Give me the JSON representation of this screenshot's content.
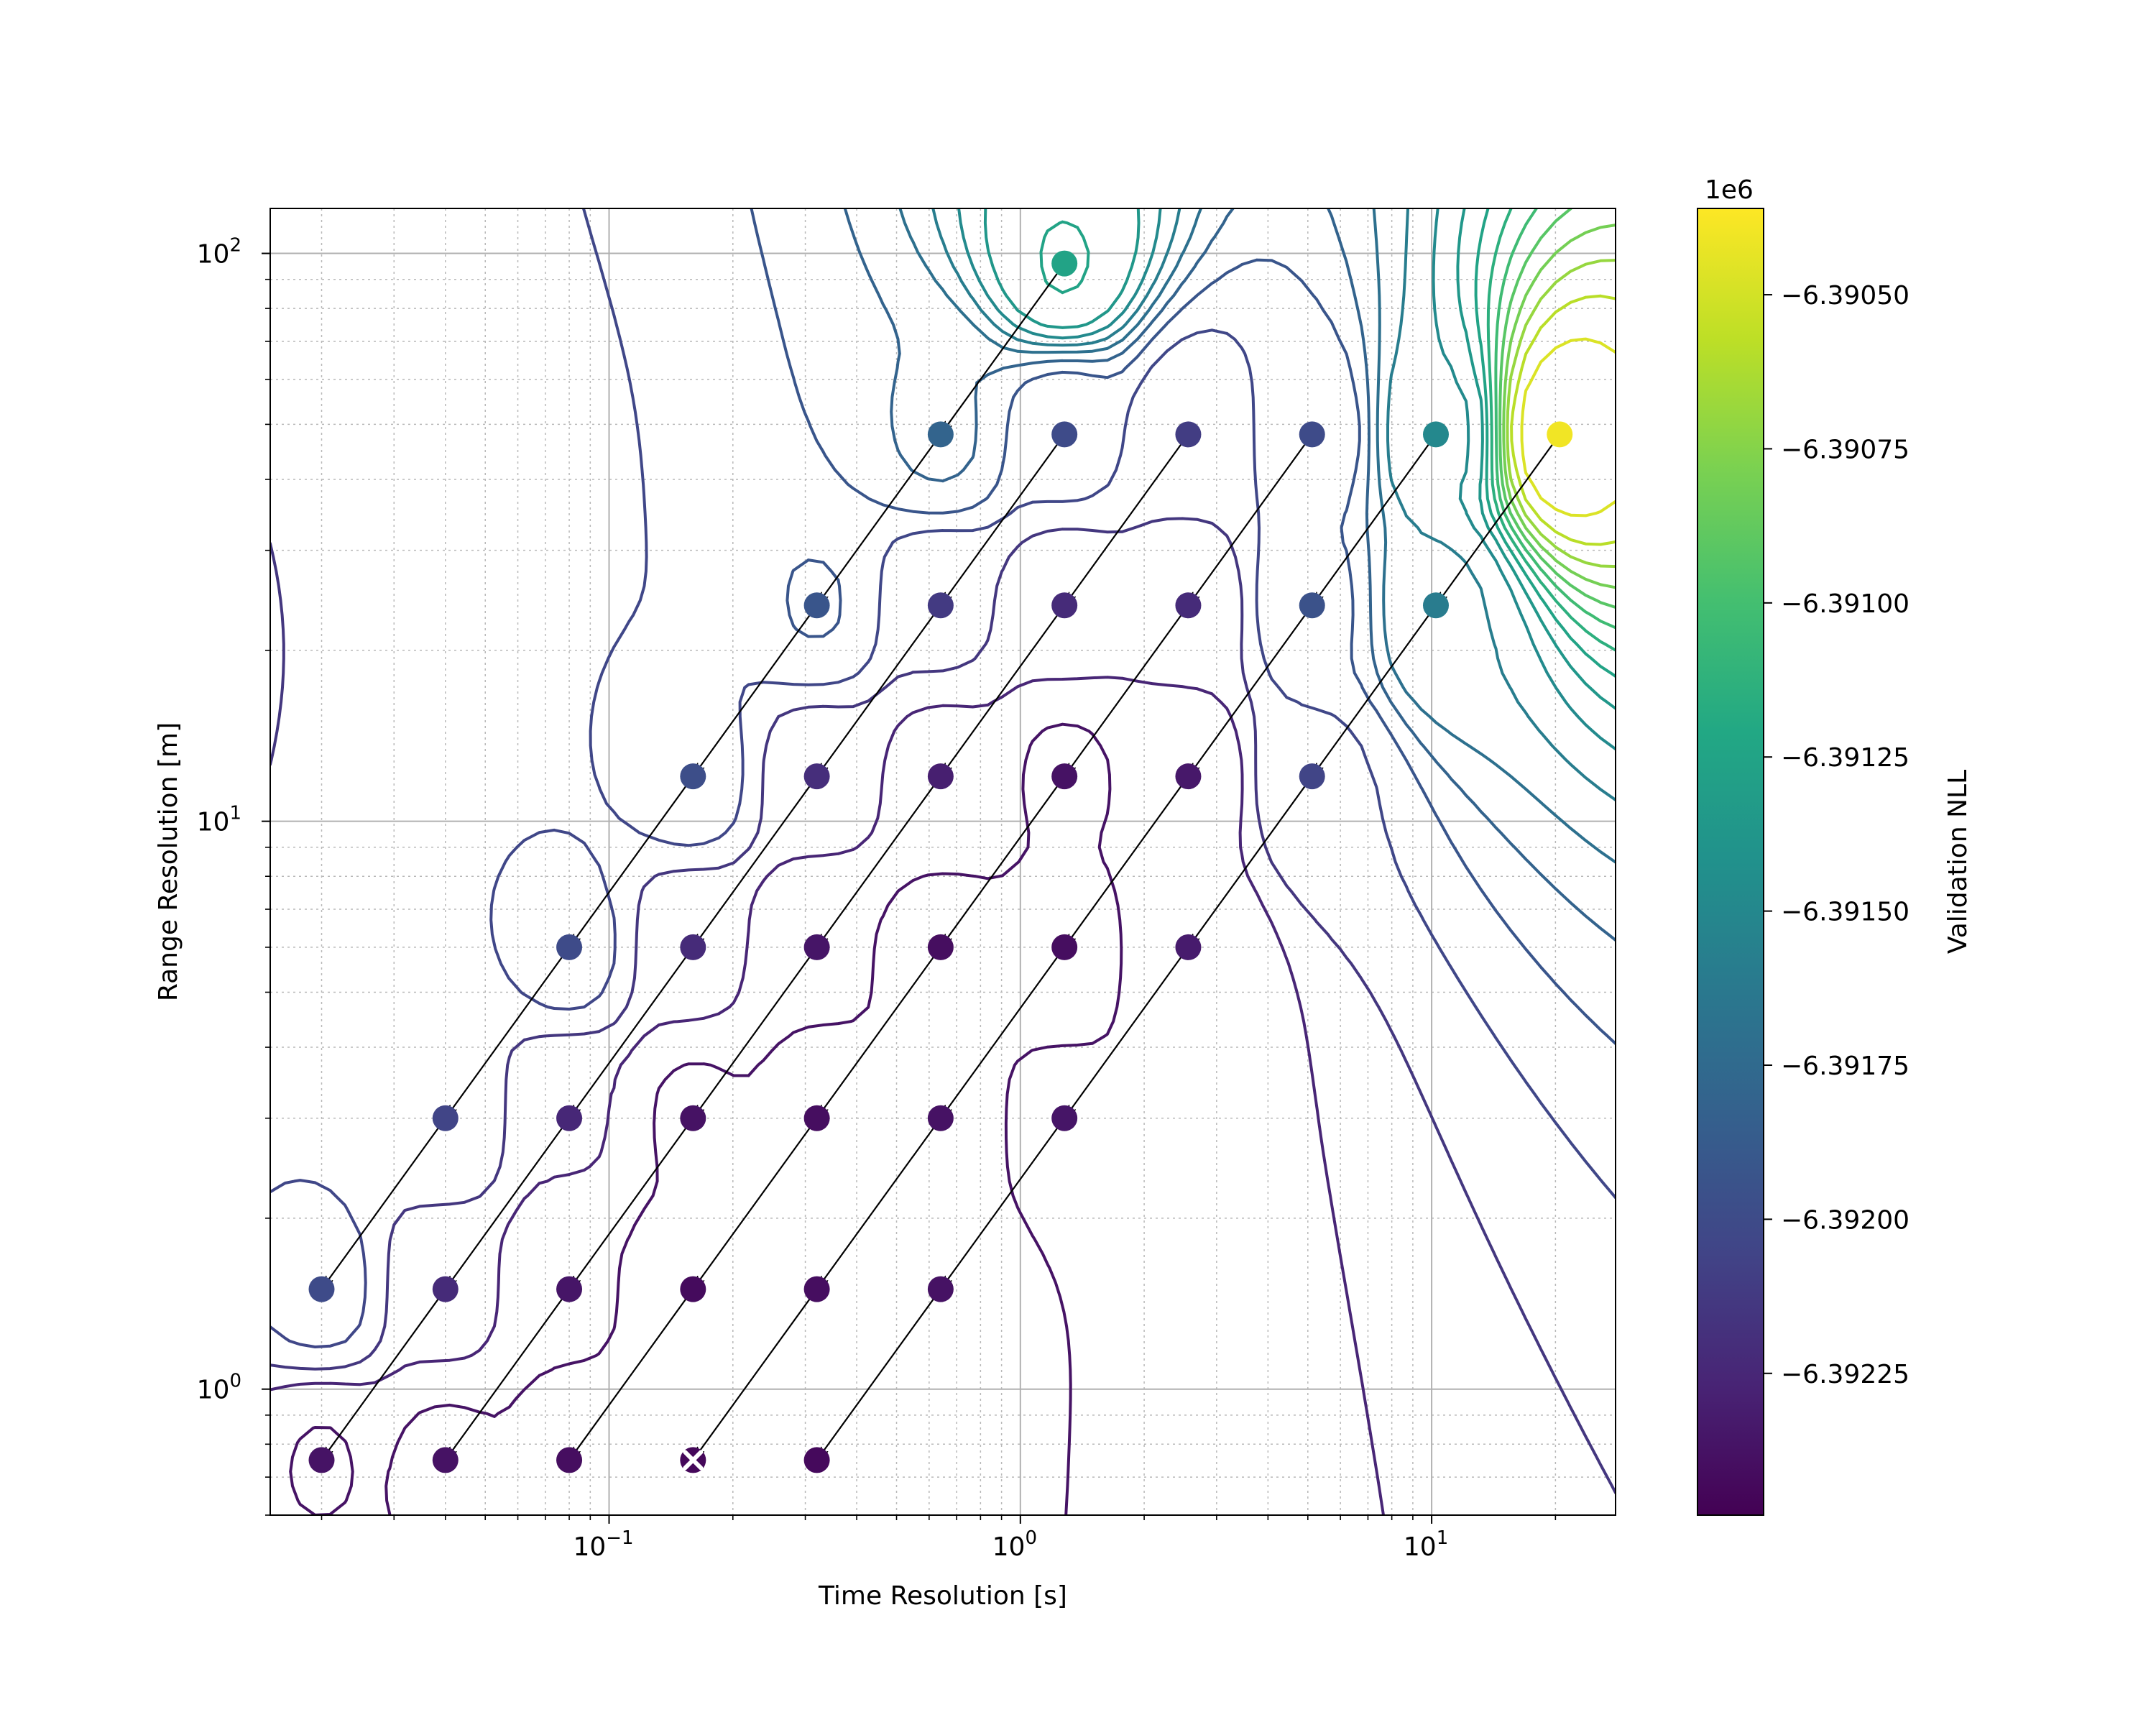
{
  "chart_data": {
    "type": "scatter",
    "xlabel": "Time Resolution [s]",
    "ylabel": "Range Resolution [m]",
    "x_scale": "log",
    "y_scale": "log",
    "xlim": [
      0.015,
      28
    ],
    "ylim": [
      0.6,
      120
    ],
    "grid": true,
    "x_ticks": [
      {
        "base": "10",
        "exp": "−1",
        "value": 0.1
      },
      {
        "base": "10",
        "exp": "0",
        "value": 1
      },
      {
        "base": "10",
        "exp": "1",
        "value": 10
      }
    ],
    "y_ticks": [
      {
        "base": "10",
        "exp": "0",
        "value": 1
      },
      {
        "base": "10",
        "exp": "1",
        "value": 10
      },
      {
        "base": "10",
        "exp": "2",
        "value": 100
      }
    ],
    "colorbar": {
      "label": "Validation NLL",
      "offset_text": "1e6",
      "range": [
        -6.39248,
        -6.39036
      ],
      "ticks": [
        {
          "value": -6.3905,
          "label": "−6.39050"
        },
        {
          "value": -6.39075,
          "label": "−6.39075"
        },
        {
          "value": -6.391,
          "label": "−6.39100"
        },
        {
          "value": -6.39125,
          "label": "−6.39125"
        },
        {
          "value": -6.3915,
          "label": "−6.39150"
        },
        {
          "value": -6.39175,
          "label": "−6.39175"
        },
        {
          "value": -6.392,
          "label": "−6.39200"
        },
        {
          "value": -6.39225,
          "label": "−6.39225"
        }
      ]
    },
    "points": [
      {
        "x": 0.02,
        "y": 0.75,
        "nll": -6.39237
      },
      {
        "x": 0.04,
        "y": 0.75,
        "nll": -6.39238
      },
      {
        "x": 0.08,
        "y": 0.75,
        "nll": -6.3924
      },
      {
        "x": 0.16,
        "y": 0.75,
        "nll": -6.39244,
        "best": true
      },
      {
        "x": 0.32,
        "y": 0.75,
        "nll": -6.39243
      },
      {
        "x": 0.02,
        "y": 1.5,
        "nll": -6.392
      },
      {
        "x": 0.04,
        "y": 1.5,
        "nll": -6.39222
      },
      {
        "x": 0.08,
        "y": 1.5,
        "nll": -6.39236
      },
      {
        "x": 0.16,
        "y": 1.5,
        "nll": -6.39242
      },
      {
        "x": 0.32,
        "y": 1.5,
        "nll": -6.3924
      },
      {
        "x": 0.64,
        "y": 1.5,
        "nll": -6.39238
      },
      {
        "x": 0.04,
        "y": 3,
        "nll": -6.39205
      },
      {
        "x": 0.08,
        "y": 3,
        "nll": -6.39225
      },
      {
        "x": 0.16,
        "y": 3,
        "nll": -6.39238
      },
      {
        "x": 0.32,
        "y": 3,
        "nll": -6.3924
      },
      {
        "x": 0.64,
        "y": 3,
        "nll": -6.39238
      },
      {
        "x": 1.28,
        "y": 3,
        "nll": -6.39236
      },
      {
        "x": 0.08,
        "y": 6,
        "nll": -6.392
      },
      {
        "x": 0.16,
        "y": 6,
        "nll": -6.39222
      },
      {
        "x": 0.32,
        "y": 6,
        "nll": -6.39236
      },
      {
        "x": 0.64,
        "y": 6,
        "nll": -6.3924
      },
      {
        "x": 1.28,
        "y": 6,
        "nll": -6.3924
      },
      {
        "x": 2.56,
        "y": 6,
        "nll": -6.39232
      },
      {
        "x": 0.16,
        "y": 12,
        "nll": -6.39198
      },
      {
        "x": 0.32,
        "y": 12,
        "nll": -6.3922
      },
      {
        "x": 0.64,
        "y": 12,
        "nll": -6.3923
      },
      {
        "x": 1.28,
        "y": 12,
        "nll": -6.39238
      },
      {
        "x": 2.56,
        "y": 12,
        "nll": -6.39234
      },
      {
        "x": 5.12,
        "y": 12,
        "nll": -6.39205
      },
      {
        "x": 0.32,
        "y": 24,
        "nll": -6.39192
      },
      {
        "x": 0.64,
        "y": 24,
        "nll": -6.39212
      },
      {
        "x": 1.28,
        "y": 24,
        "nll": -6.39222
      },
      {
        "x": 2.56,
        "y": 24,
        "nll": -6.39222
      },
      {
        "x": 5.12,
        "y": 24,
        "nll": -6.39195
      },
      {
        "x": 10.24,
        "y": 24,
        "nll": -6.3916
      },
      {
        "x": 0.64,
        "y": 48,
        "nll": -6.3918
      },
      {
        "x": 1.28,
        "y": 48,
        "nll": -6.392
      },
      {
        "x": 2.56,
        "y": 48,
        "nll": -6.3921
      },
      {
        "x": 5.12,
        "y": 48,
        "nll": -6.392
      },
      {
        "x": 10.24,
        "y": 48,
        "nll": -6.3915
      },
      {
        "x": 20.48,
        "y": 48,
        "nll": -6.3904
      },
      {
        "x": 1.28,
        "y": 96,
        "nll": -6.39125
      }
    ],
    "arrows": [
      {
        "from": [
          1.28,
          96
        ],
        "to": [
          0.64,
          48
        ]
      },
      {
        "from": [
          0.64,
          48
        ],
        "to": [
          0.32,
          24
        ]
      },
      {
        "from": [
          0.32,
          24
        ],
        "to": [
          0.16,
          12
        ]
      },
      {
        "from": [
          0.16,
          12
        ],
        "to": [
          0.08,
          6
        ]
      },
      {
        "from": [
          0.08,
          6
        ],
        "to": [
          0.04,
          3
        ]
      },
      {
        "from": [
          0.04,
          3
        ],
        "to": [
          0.02,
          1.5
        ]
      },
      {
        "from": [
          1.28,
          48
        ],
        "to": [
          0.64,
          24
        ]
      },
      {
        "from": [
          0.64,
          24
        ],
        "to": [
          0.32,
          12
        ]
      },
      {
        "from": [
          0.32,
          12
        ],
        "to": [
          0.16,
          6
        ]
      },
      {
        "from": [
          0.16,
          6
        ],
        "to": [
          0.08,
          3
        ]
      },
      {
        "from": [
          0.08,
          3
        ],
        "to": [
          0.04,
          1.5
        ]
      },
      {
        "from": [
          0.04,
          1.5
        ],
        "to": [
          0.02,
          0.75
        ]
      },
      {
        "from": [
          2.56,
          48
        ],
        "to": [
          1.28,
          24
        ]
      },
      {
        "from": [
          1.28,
          24
        ],
        "to": [
          0.64,
          12
        ]
      },
      {
        "from": [
          0.64,
          12
        ],
        "to": [
          0.32,
          6
        ]
      },
      {
        "from": [
          0.32,
          6
        ],
        "to": [
          0.16,
          3
        ]
      },
      {
        "from": [
          0.16,
          3
        ],
        "to": [
          0.08,
          1.5
        ]
      },
      {
        "from": [
          0.08,
          1.5
        ],
        "to": [
          0.04,
          0.75
        ]
      },
      {
        "from": [
          5.12,
          48
        ],
        "to": [
          2.56,
          24
        ]
      },
      {
        "from": [
          2.56,
          24
        ],
        "to": [
          1.28,
          12
        ]
      },
      {
        "from": [
          1.28,
          12
        ],
        "to": [
          0.64,
          6
        ]
      },
      {
        "from": [
          0.64,
          6
        ],
        "to": [
          0.32,
          3
        ]
      },
      {
        "from": [
          0.32,
          3
        ],
        "to": [
          0.16,
          1.5
        ]
      },
      {
        "from": [
          0.16,
          1.5
        ],
        "to": [
          0.08,
          0.75
        ]
      },
      {
        "from": [
          10.24,
          48
        ],
        "to": [
          5.12,
          24
        ]
      },
      {
        "from": [
          5.12,
          24
        ],
        "to": [
          2.56,
          12
        ]
      },
      {
        "from": [
          2.56,
          12
        ],
        "to": [
          1.28,
          6
        ]
      },
      {
        "from": [
          1.28,
          6
        ],
        "to": [
          0.64,
          3
        ]
      },
      {
        "from": [
          0.64,
          3
        ],
        "to": [
          0.32,
          1.5
        ]
      },
      {
        "from": [
          0.32,
          1.5
        ],
        "to": [
          0.16,
          0.75
        ]
      },
      {
        "from": [
          20.48,
          48
        ],
        "to": [
          10.24,
          24
        ]
      },
      {
        "from": [
          10.24,
          24
        ],
        "to": [
          5.12,
          12
        ]
      },
      {
        "from": [
          5.12,
          12
        ],
        "to": [
          2.56,
          6
        ]
      },
      {
        "from": [
          2.56,
          6
        ],
        "to": [
          1.28,
          3
        ]
      },
      {
        "from": [
          1.28,
          3
        ],
        "to": [
          0.64,
          1.5
        ]
      },
      {
        "from": [
          0.64,
          1.5
        ],
        "to": [
          0.32,
          0.75
        ]
      }
    ]
  }
}
